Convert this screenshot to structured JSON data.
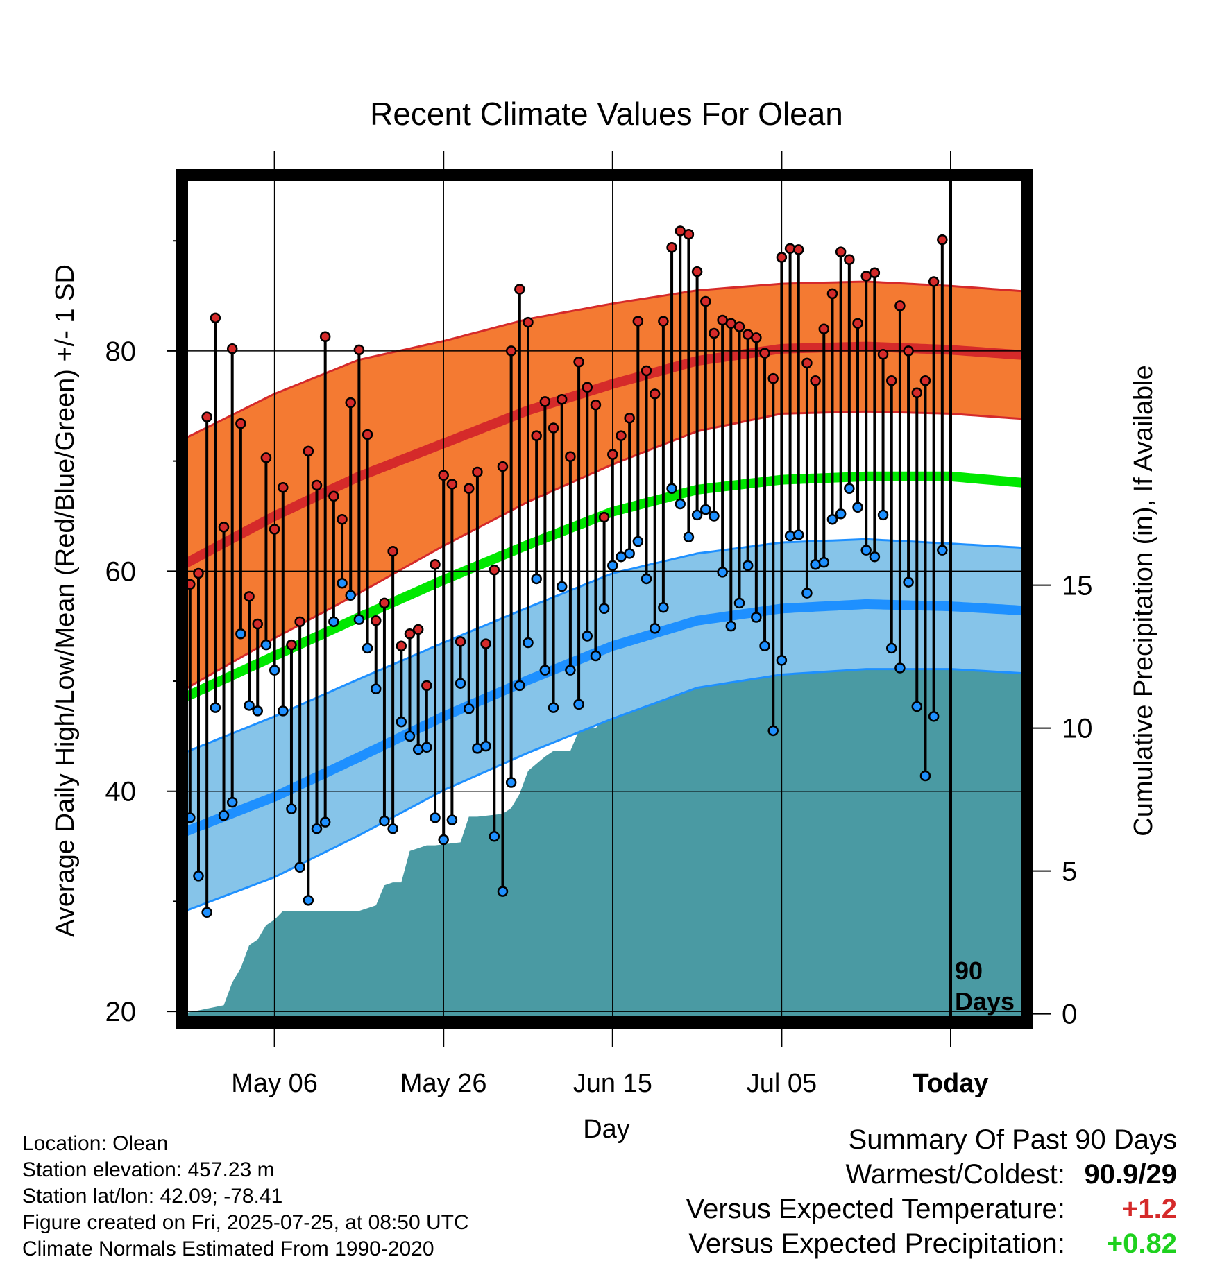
{
  "chart_data": {
    "type": "line",
    "title": "Recent Climate Values For Olean",
    "xlabel": "Day",
    "ylabel": "Average Daily High/Low/Mean (Red/Blue/Green) +/- 1 SD",
    "y2label": "Cumulative Precipitation (in), If Available",
    "ylim": [
      19,
      96
    ],
    "y_ticks": [
      20,
      40,
      60,
      80
    ],
    "y2lim": [
      -0.3,
      30
    ],
    "y2_ticks": [
      0,
      5,
      10,
      15
    ],
    "x_ticks": [
      "May 06",
      "May 26",
      "Jun 15",
      "Jul 05",
      "Today"
    ],
    "x_tick_day_offsets": [
      -80,
      -60,
      -40,
      -20,
      0
    ],
    "today_marker_label": [
      "90",
      "Days"
    ],
    "colors": {
      "high_band": "#f47a32",
      "high_line": "#d52a2a",
      "high_edge": "#d52a2a",
      "mean_line": "#00e800",
      "low_band": "#86c4e9",
      "low_line": "#1e90ff",
      "low_edge": "#1e90ff",
      "precip": "#4a9aa3",
      "high_dot": "#d52a2a",
      "low_dot": "#1e90ff"
    },
    "normals": {
      "day_offsets": [
        -91,
        -80,
        -70,
        -60,
        -50,
        -40,
        -30,
        -20,
        -10,
        0,
        9
      ],
      "high_mean": [
        60.5,
        65.0,
        68.6,
        71.6,
        74.6,
        77.0,
        79.1,
        80.2,
        80.4,
        80.1,
        79.6
      ],
      "high_sd": [
        11.4,
        11.1,
        10.6,
        9.3,
        8.3,
        7.3,
        6.4,
        5.9,
        5.9,
        5.8,
        5.8
      ],
      "mean_normal": [
        48.4,
        52.3,
        55.8,
        59.2,
        62.4,
        65.4,
        67.4,
        68.3,
        68.6,
        68.6,
        68.0
      ],
      "low_mean": [
        36.2,
        39.5,
        43.1,
        46.8,
        50.1,
        53.2,
        55.5,
        56.6,
        57.0,
        56.8,
        56.4
      ],
      "low_sd": [
        7.2,
        7.3,
        7.1,
        6.7,
        6.6,
        6.6,
        6.1,
        6.0,
        5.9,
        5.7,
        5.7
      ]
    },
    "daily": {
      "day_offsets": [
        -90,
        -89,
        -88,
        -87,
        -86,
        -85,
        -84,
        -83,
        -82,
        -81,
        -80,
        -79,
        -78,
        -77,
        -76,
        -75,
        -74,
        -73,
        -72,
        -71,
        -70,
        -69,
        -68,
        -67,
        -66,
        -65,
        -64,
        -63,
        -62,
        -61,
        -60,
        -59,
        -58,
        -57,
        -56,
        -55,
        -54,
        -53,
        -52,
        -51,
        -50,
        -49,
        -48,
        -47,
        -46,
        -45,
        -44,
        -43,
        -42,
        -41,
        -40,
        -39,
        -38,
        -37,
        -36,
        -35,
        -34,
        -33,
        -32,
        -31,
        -30,
        -29,
        -28,
        -27,
        -26,
        -25,
        -24,
        -23,
        -22,
        -21,
        -20,
        -19,
        -18,
        -17,
        -16,
        -15,
        -14,
        -13,
        -12,
        -11,
        -10,
        -9,
        -8,
        -7,
        -6,
        -5,
        -4,
        -3,
        -2,
        -1
      ],
      "high": [
        58.8,
        59.8,
        74.0,
        83.0,
        64.0,
        80.2,
        73.4,
        57.7,
        55.2,
        70.3,
        63.8,
        67.6,
        53.3,
        55.4,
        70.9,
        67.8,
        81.3,
        66.8,
        64.7,
        75.3,
        80.1,
        72.4,
        55.5,
        57.1,
        61.8,
        53.2,
        54.3,
        54.7,
        49.6,
        60.6,
        68.7,
        67.9,
        53.6,
        67.5,
        69.0,
        53.4,
        60.1,
        69.5,
        80.0,
        85.6,
        82.6,
        72.3,
        75.4,
        73.0,
        75.6,
        70.4,
        79.0,
        76.7,
        75.1,
        64.9,
        70.6,
        72.3,
        73.9,
        82.7,
        78.2,
        76.1,
        82.7,
        89.4,
        90.9,
        90.6,
        87.2,
        84.5,
        81.6,
        82.8,
        82.5,
        82.2,
        81.5,
        81.2,
        79.8,
        77.5,
        88.5,
        89.3,
        89.2,
        78.9,
        77.3,
        82.0,
        85.2,
        89.0,
        88.3,
        82.5,
        86.8,
        87.1,
        79.7,
        77.3,
        84.1,
        80.0,
        76.2,
        77.3,
        86.3,
        90.1
      ],
      "low": [
        37.6,
        32.3,
        29.0,
        47.6,
        37.8,
        39.0,
        54.3,
        47.8,
        47.3,
        53.3,
        51.0,
        47.3,
        38.4,
        33.1,
        30.1,
        36.6,
        37.2,
        55.4,
        58.9,
        57.8,
        55.6,
        53.0,
        49.3,
        37.3,
        36.6,
        46.3,
        45.0,
        43.8,
        44.0,
        37.6,
        35.6,
        37.4,
        49.8,
        47.5,
        43.9,
        44.1,
        35.9,
        30.9,
        40.8,
        49.6,
        53.5,
        59.3,
        51.0,
        47.6,
        58.6,
        51.0,
        47.9,
        54.1,
        52.3,
        56.6,
        60.5,
        61.3,
        61.6,
        62.7,
        59.3,
        54.8,
        56.7,
        67.5,
        66.1,
        63.1,
        65.1,
        65.6,
        65.0,
        59.9,
        55.0,
        57.1,
        60.5,
        55.8,
        53.2,
        45.5,
        51.9,
        63.2,
        63.3,
        58.0,
        60.6,
        60.8,
        64.7,
        65.2,
        67.5,
        65.8,
        61.9,
        61.3,
        65.1,
        53.0,
        51.2,
        59.0,
        47.7,
        41.4,
        46.8,
        61.9
      ]
    },
    "precip": {
      "day_offsets": [
        -91,
        -86,
        -85,
        -84,
        -83,
        -82,
        -81,
        -80,
        -79,
        -70,
        -69,
        -68,
        -67,
        -66,
        -65,
        -64,
        -63,
        -62,
        -61,
        -58,
        -57,
        -56,
        -53,
        -52,
        -51,
        -50,
        -48,
        -47,
        -45,
        -44,
        -43,
        -42,
        -41,
        -40,
        -39,
        -38,
        -37,
        -34,
        -33,
        -31,
        -30,
        -29,
        -28,
        -27,
        -26,
        -25,
        -24,
        -23,
        -22,
        -21,
        -20,
        -19,
        -18,
        -17,
        -16,
        -15,
        -14,
        -13,
        -12,
        -11,
        -10,
        -9,
        -8,
        -7,
        -6,
        -5,
        -4,
        -3,
        -2,
        -1,
        0,
        9
      ],
      "cumulative": [
        0.0,
        0.3,
        1.1,
        1.6,
        2.4,
        2.6,
        3.1,
        3.3,
        3.6,
        3.6,
        3.7,
        3.8,
        4.5,
        4.6,
        4.6,
        5.7,
        5.8,
        5.9,
        5.9,
        6.0,
        6.9,
        6.9,
        7.0,
        7.2,
        7.7,
        8.5,
        9.0,
        9.2,
        9.2,
        9.9,
        10.0,
        10.0,
        10.3,
        10.4,
        11.3,
        11.6,
        11.6,
        11.7,
        11.7,
        11.9,
        11.9,
        12.0,
        12.0,
        12.0,
        12.1,
        12.1,
        12.1,
        12.1,
        12.2,
        12.3,
        12.3,
        12.5,
        12.5,
        12.5,
        12.6,
        12.6,
        12.6,
        12.7,
        12.7,
        12.7,
        12.8,
        12.8,
        12.9,
        12.9,
        13.0,
        13.0,
        13.0,
        13.0,
        13.0,
        13.0,
        13.0,
        13.0
      ]
    }
  },
  "info": {
    "location": "Location: Olean",
    "elevation": "Station elevation: 457.23 m",
    "latlon": "Station lat/lon: 42.09; -78.41",
    "created": "Figure created on Fri, 2025-07-25, at 08:50 UTC",
    "normals": "Climate Normals Estimated From 1990-2020"
  },
  "summary": {
    "heading": "Summary Of Past 90 Days",
    "warmest_coldest_label": "Warmest/Coldest:",
    "warmest_coldest_value": "90.9/29",
    "temp_label": "Versus Expected Temperature:",
    "temp_value": "+1.2",
    "temp_color": "#d52a2a",
    "precip_label": "Versus Expected Precipitation:",
    "precip_value": "+0.82",
    "precip_color": "#1ed11e"
  }
}
